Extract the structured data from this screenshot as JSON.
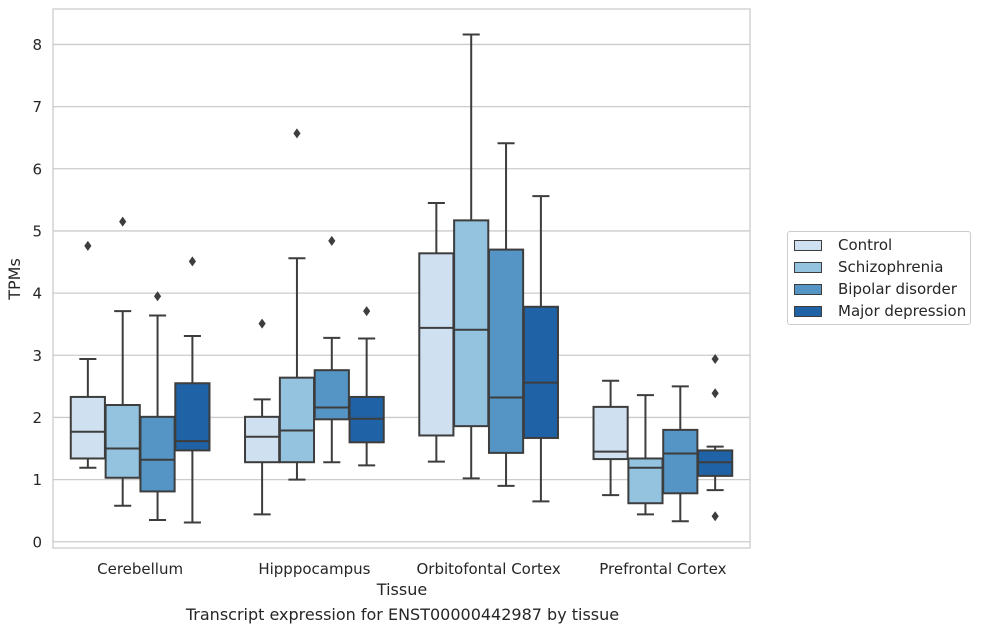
{
  "caption": "Transcript expression for ENST00000442987 by tissue",
  "chart_data": {
    "type": "box",
    "title": "",
    "xlabel": "Tissue",
    "ylabel": "TPMs",
    "ylim": [
      -0.1,
      8.57
    ],
    "yticks": [
      0,
      1,
      2,
      3,
      4,
      5,
      6,
      7,
      8
    ],
    "categories": [
      "Cerebellum",
      "Hipppocampus",
      "Orbitofontal Cortex",
      "Prefrontal Cortex"
    ],
    "grid": true,
    "legend_placement": "right",
    "series": [
      {
        "name": "Control",
        "color": "#cfe0f1",
        "boxes": [
          {
            "whislo": 1.19,
            "q1": 1.34,
            "med": 1.77,
            "q3": 2.33,
            "whishi": 2.94,
            "fliers": [
              4.76
            ]
          },
          {
            "whislo": 0.44,
            "q1": 1.28,
            "med": 1.69,
            "q3": 2.01,
            "whishi": 2.29,
            "fliers": [
              3.51
            ]
          },
          {
            "whislo": 1.29,
            "q1": 1.71,
            "med": 3.44,
            "q3": 4.64,
            "whishi": 5.45,
            "fliers": []
          },
          {
            "whislo": 0.75,
            "q1": 1.33,
            "med": 1.45,
            "q3": 2.17,
            "whishi": 2.59,
            "fliers": []
          }
        ]
      },
      {
        "name": "Schizophrenia",
        "color": "#93c3df",
        "boxes": [
          {
            "whislo": 0.58,
            "q1": 1.03,
            "med": 1.5,
            "q3": 2.2,
            "whishi": 3.71,
            "fliers": [
              5.15
            ]
          },
          {
            "whislo": 1.0,
            "q1": 1.28,
            "med": 1.79,
            "q3": 2.64,
            "whishi": 4.56,
            "fliers": [
              6.57
            ]
          },
          {
            "whislo": 1.02,
            "q1": 1.86,
            "med": 3.41,
            "q3": 5.17,
            "whishi": 8.16,
            "fliers": []
          },
          {
            "whislo": 0.44,
            "q1": 0.62,
            "med": 1.19,
            "q3": 1.34,
            "whishi": 2.36,
            "fliers": []
          }
        ]
      },
      {
        "name": "Bipolar disorder",
        "color": "#5495c6",
        "boxes": [
          {
            "whislo": 0.35,
            "q1": 0.81,
            "med": 1.32,
            "q3": 2.01,
            "whishi": 3.64,
            "fliers": [
              3.95
            ]
          },
          {
            "whislo": 1.28,
            "q1": 1.97,
            "med": 2.16,
            "q3": 2.76,
            "whishi": 3.28,
            "fliers": [
              4.84
            ]
          },
          {
            "whislo": 0.9,
            "q1": 1.43,
            "med": 2.32,
            "q3": 4.7,
            "whishi": 6.41,
            "fliers": []
          },
          {
            "whislo": 0.33,
            "q1": 0.78,
            "med": 1.42,
            "q3": 1.8,
            "whishi": 2.5,
            "fliers": []
          }
        ]
      },
      {
        "name": "Major depression",
        "color": "#1f62a5",
        "boxes": [
          {
            "whislo": 0.31,
            "q1": 1.47,
            "med": 1.62,
            "q3": 2.55,
            "whishi": 3.31,
            "fliers": [
              4.51
            ]
          },
          {
            "whislo": 1.23,
            "q1": 1.6,
            "med": 1.98,
            "q3": 2.33,
            "whishi": 3.27,
            "fliers": [
              3.71
            ]
          },
          {
            "whislo": 0.65,
            "q1": 1.67,
            "med": 2.56,
            "q3": 3.78,
            "whishi": 5.56,
            "fliers": []
          },
          {
            "whislo": 0.83,
            "q1": 1.06,
            "med": 1.28,
            "q3": 1.47,
            "whishi": 1.53,
            "fliers": [
              2.94,
              2.39,
              0.41
            ]
          }
        ]
      }
    ]
  }
}
